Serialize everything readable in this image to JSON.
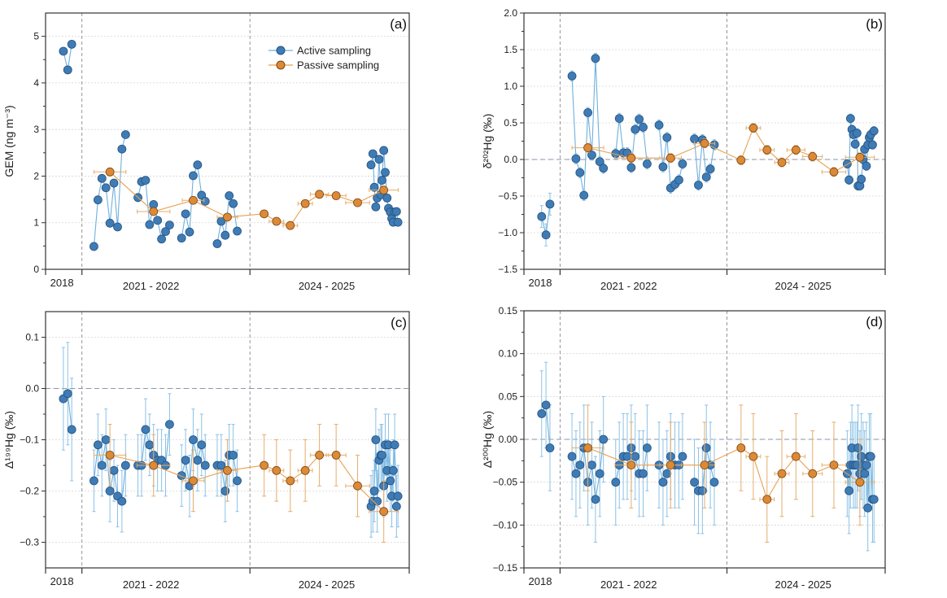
{
  "chart_data": {
    "type": "scatter",
    "x_axis": {
      "xlim": [
        0,
        100
      ],
      "tick_positions": [
        0,
        10,
        56.2,
        100
      ],
      "dividers": [
        10,
        56.2
      ],
      "labels": [
        {
          "text": "2018",
          "at": 4.5
        },
        {
          "text": "2021 - 2022",
          "at": 29
        },
        {
          "text": "2024 - 2025",
          "at": 77.3
        }
      ]
    },
    "legend": {
      "placement": "top-center",
      "items": [
        {
          "label": "Active sampling",
          "series": "active"
        },
        {
          "label": "Passive sampling",
          "series": "passive"
        }
      ]
    },
    "colors": {
      "active_fill": "#3f7cb6",
      "active_edge": "#25527f",
      "active_line": "#6fb0de",
      "active_err": "#8cc2e6",
      "passive_fill": "#dc8a35",
      "passive_edge": "#7a4416",
      "passive_line": "#e7a04f",
      "passive_err": "#e6ad6a",
      "grid": "#d6d6d6",
      "divider": "#8a8a8a",
      "axis": "#333333"
    },
    "active_x": [
      [
        4.9,
        6.1,
        7.2
      ],
      [
        13.3,
        14.4,
        15.5,
        16.6,
        17.7,
        18.8,
        19.8,
        21.0,
        22.0
      ],
      [
        25.4,
        26.4,
        27.5,
        28.6,
        29.7,
        30.8,
        31.9,
        33.0,
        34.1
      ],
      [
        37.4,
        38.5,
        39.6,
        40.6,
        41.8,
        42.9,
        43.9
      ],
      [
        47.2,
        48.3,
        49.4,
        50.5,
        51.6,
        52.7
      ],
      [
        89.5,
        90.0,
        90.4,
        90.8,
        91.2,
        91.7,
        92.2,
        92.5,
        93.0,
        93.4,
        93.9,
        94.3,
        94.8,
        95.2,
        95.6,
        96.0,
        96.5,
        96.9
      ]
    ],
    "passive_x": [
      17.7,
      29.7,
      40.6,
      50.0,
      60.1,
      63.5,
      67.3,
      71.4,
      75.3,
      79.9,
      85.8,
      93.0
    ],
    "passive_xerr": [
      4.4,
      4.5,
      3.0,
      2.8,
      1.0,
      2.0,
      2.0,
      2.0,
      2.5,
      2.7,
      3.3,
      4.0
    ],
    "panels": [
      {
        "tag": "(a)",
        "ylabel": "GEM (ng m⁻³)",
        "ylim": [
          0,
          5.5
        ],
        "yticks": [
          0,
          1,
          2,
          3,
          4,
          5
        ],
        "ytick_labels": [
          "0",
          "1",
          "2",
          "3",
          "4",
          "5"
        ],
        "zero_line": false,
        "active_y": [
          [
            4.68,
            4.28,
            4.83
          ],
          [
            0.49,
            1.49,
            1.95,
            1.75,
            0.99,
            1.85,
            0.91,
            2.58,
            2.89
          ],
          [
            1.54,
            1.88,
            1.91,
            0.96,
            1.39,
            1.05,
            0.65,
            0.81,
            0.95
          ],
          [
            0.67,
            1.19,
            0.8,
            2.01,
            2.24,
            1.59,
            1.46
          ],
          [
            0.55,
            1.03,
            0.73,
            1.58,
            1.41,
            0.82
          ],
          [
            2.24,
            2.48,
            1.76,
            1.34,
            1.53,
            2.36,
            1.6,
            1.91,
            2.55,
            2.08,
            1.53,
            1.31,
            1.23,
            1.09,
            1.01,
            1.23,
            1.24,
            1.01
          ]
        ],
        "active_yerr": [
          0,
          0,
          0,
          0,
          0,
          0
        ],
        "passive_y": [
          2.09,
          1.24,
          1.48,
          1.12,
          1.19,
          1.03,
          0.94,
          1.41,
          1.61,
          1.58,
          1.43,
          1.7
        ],
        "passive_yerr": 0
      },
      {
        "tag": "(b)",
        "ylabel": "δ²⁰²Hg (‰)",
        "ylim": [
          -1.5,
          2.0
        ],
        "yticks": [
          -1.5,
          -1.0,
          -0.5,
          0,
          0.5,
          1.0,
          1.5,
          2.0
        ],
        "ytick_labels": [
          "−1.5",
          "−1.0",
          "−0.5",
          "0.0",
          "0.5",
          "1.0",
          "1.5",
          "2.0"
        ],
        "zero_line": true,
        "active_y": [
          [
            -0.78,
            -1.03,
            -0.61
          ],
          [
            1.14,
            0.01,
            -0.18,
            -0.49,
            0.64,
            0.06,
            1.38,
            -0.03,
            -0.12
          ],
          [
            0.08,
            0.56,
            0.09,
            0.09,
            -0.11,
            0.41,
            0.55,
            0.44,
            -0.06
          ],
          [
            0.47,
            -0.1,
            0.3,
            -0.39,
            -0.34,
            -0.28,
            -0.06
          ],
          [
            0.28,
            -0.35,
            0.27,
            -0.24,
            -0.13,
            0.2
          ],
          [
            -0.06,
            -0.28,
            0.56,
            0.41,
            0.34,
            0.21,
            0.36,
            -0.36,
            -0.36,
            -0.27,
            0.0,
            0.14,
            -0.09,
            0.2,
            0.3,
            0.34,
            0.2,
            0.39
          ]
        ],
        "active_yerr": [
          0.15,
          0.07,
          0.07,
          0.07,
          0.07,
          0.06
        ],
        "passive_y": [
          0.16,
          0.02,
          0.02,
          0.22,
          -0.01,
          0.43,
          0.13,
          -0.04,
          0.13,
          0.04,
          -0.17,
          0.03
        ],
        "passive_yerr": 0.06
      },
      {
        "tag": "(c)",
        "ylabel": "Δ¹⁹⁹Hg (‰)",
        "ylim": [
          -0.35,
          0.15
        ],
        "yticks": [
          -0.3,
          -0.2,
          -0.1,
          0,
          0.1
        ],
        "ytick_labels": [
          "−0.3",
          "−0.2",
          "−0.1",
          "0.0",
          "0.1"
        ],
        "zero_line": true,
        "active_y": [
          [
            -0.02,
            -0.01,
            -0.08
          ],
          [
            -0.18,
            -0.11,
            -0.15,
            -0.1,
            -0.2,
            -0.16,
            -0.21,
            -0.22,
            -0.15
          ],
          [
            -0.15,
            -0.15,
            -0.08,
            -0.11,
            -0.13,
            -0.14,
            -0.14,
            -0.15,
            -0.07
          ],
          [
            -0.17,
            -0.14,
            -0.19,
            -0.1,
            -0.14,
            -0.11,
            -0.15
          ],
          [
            -0.15,
            -0.15,
            -0.2,
            -0.13,
            -0.13,
            -0.18
          ],
          [
            -0.23,
            -0.22,
            -0.2,
            -0.1,
            -0.22,
            -0.14,
            -0.13,
            -0.13,
            -0.19,
            -0.11,
            -0.16,
            -0.11,
            -0.18,
            -0.21,
            -0.16,
            -0.11,
            -0.23,
            -0.21
          ]
        ],
        "active_yerr": [
          0.1,
          0.06,
          0.06,
          0.06,
          0.06,
          0.06
        ],
        "passive_y": [
          -0.13,
          -0.15,
          -0.18,
          -0.16,
          -0.15,
          -0.16,
          -0.18,
          -0.16,
          -0.13,
          -0.13,
          -0.19,
          -0.24
        ],
        "passive_yerr": 0.06
      },
      {
        "tag": "(d)",
        "ylabel": "Δ²⁰⁰Hg (‰)",
        "ylim": [
          -0.15,
          0.15
        ],
        "yticks": [
          -0.15,
          -0.1,
          -0.05,
          0,
          0.05,
          0.1,
          0.15
        ],
        "ytick_labels": [
          "−0.15",
          "−0.10",
          "−0.05",
          "0.00",
          "0.05",
          "0.10",
          "0.15"
        ],
        "zero_line": true,
        "active_y": [
          [
            0.03,
            0.04,
            -0.01
          ],
          [
            -0.02,
            -0.04,
            -0.03,
            -0.01,
            -0.05,
            -0.03,
            -0.07,
            -0.04,
            0.0
          ],
          [
            -0.05,
            -0.03,
            -0.02,
            -0.02,
            -0.01,
            -0.02,
            -0.04,
            -0.04,
            -0.01
          ],
          [
            -0.03,
            -0.05,
            -0.04,
            -0.02,
            -0.03,
            -0.03,
            -0.02
          ],
          [
            -0.05,
            -0.06,
            -0.06,
            -0.01,
            -0.03,
            -0.05
          ],
          [
            -0.04,
            -0.06,
            -0.03,
            -0.01,
            -0.03,
            -0.03,
            -0.03,
            -0.01,
            -0.04,
            -0.02,
            -0.03,
            -0.04,
            -0.03,
            -0.08,
            -0.02,
            -0.02,
            -0.07,
            -0.07
          ]
        ],
        "active_yerr": [
          0.05,
          0.05,
          0.05,
          0.05,
          0.05,
          0.05
        ],
        "passive_y": [
          -0.01,
          -0.03,
          -0.03,
          -0.03,
          -0.01,
          -0.02,
          -0.07,
          -0.04,
          -0.02,
          -0.04,
          -0.03,
          -0.05
        ],
        "passive_yerr": 0.05
      }
    ]
  }
}
